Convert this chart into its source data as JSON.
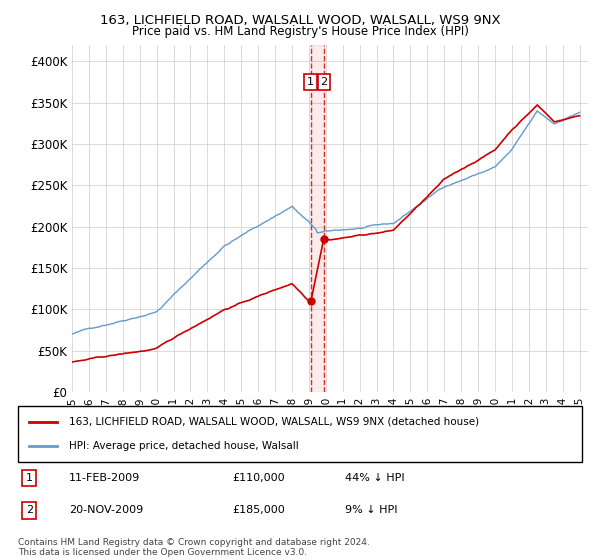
{
  "title1": "163, LICHFIELD ROAD, WALSALL WOOD, WALSALL, WS9 9NX",
  "title2": "Price paid vs. HM Land Registry's House Price Index (HPI)",
  "ylabel_ticks": [
    "£0",
    "£50K",
    "£100K",
    "£150K",
    "£200K",
    "£250K",
    "£300K",
    "£350K",
    "£400K"
  ],
  "ylabel_values": [
    0,
    50000,
    100000,
    150000,
    200000,
    250000,
    300000,
    350000,
    400000
  ],
  "ylim": [
    0,
    420000
  ],
  "xlim_start": 1995.0,
  "xlim_end": 2025.5,
  "hpi_color": "#6699cc",
  "price_color": "#cc0000",
  "dashed_color": "#cc0000",
  "t1_x": 2009.11,
  "t2_x": 2009.9,
  "t1_y": 110000,
  "t2_y": 185000,
  "transaction1_label": "11-FEB-2009",
  "transaction1_price": "£110,000",
  "transaction1_pct": "44% ↓ HPI",
  "transaction2_label": "20-NOV-2009",
  "transaction2_price": "£185,000",
  "transaction2_pct": "9% ↓ HPI",
  "legend_line1": "163, LICHFIELD ROAD, WALSALL WOOD, WALSALL, WS9 9NX (detached house)",
  "legend_line2": "HPI: Average price, detached house, Walsall",
  "footnote": "Contains HM Land Registry data © Crown copyright and database right 2024.\nThis data is licensed under the Open Government Licence v3.0.",
  "xticks": [
    1995,
    1996,
    1997,
    1998,
    1999,
    2000,
    2001,
    2002,
    2003,
    2004,
    2005,
    2006,
    2007,
    2008,
    2009,
    2010,
    2011,
    2012,
    2013,
    2014,
    2015,
    2016,
    2017,
    2018,
    2019,
    2020,
    2021,
    2022,
    2023,
    2024,
    2025
  ]
}
